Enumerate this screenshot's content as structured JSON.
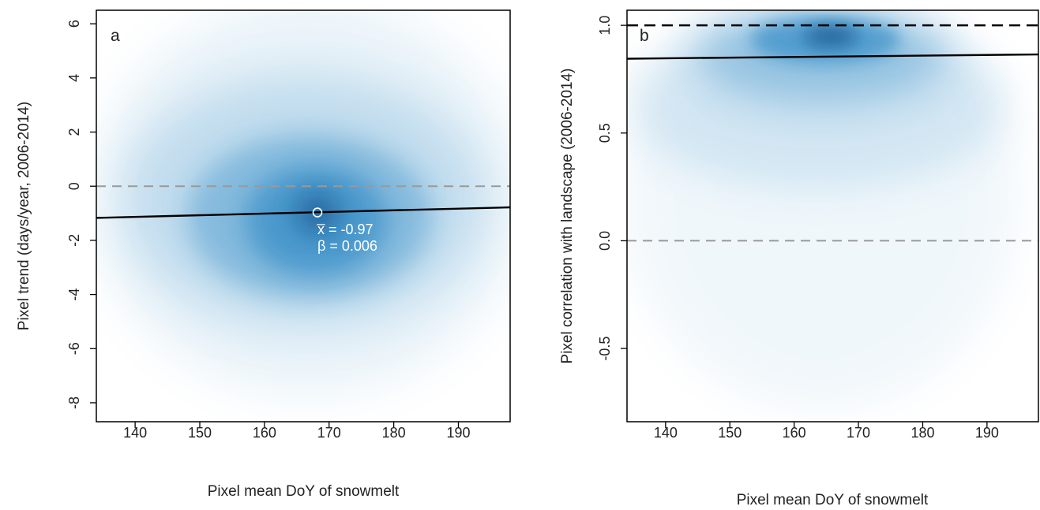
{
  "colors": {
    "density": "#1a7fc0",
    "density_core": "#0b4f8a",
    "trend_line": "#000000",
    "zero_line": "#999999",
    "annotation": "#ffffff"
  },
  "chart_data": [
    {
      "type": "scatter",
      "panel_label": "a",
      "xlabel": "Pixel mean DoY of snowmelt",
      "ylabel": "Pixel trend (days/year, 2006-2014)",
      "xlim": [
        134,
        198
      ],
      "ylim": [
        -8.7,
        6.5
      ],
      "x_ticks": [
        140,
        150,
        160,
        170,
        180,
        190
      ],
      "y_ticks": [
        -8,
        -6,
        -4,
        -2,
        0,
        2,
        4,
        6
      ],
      "density_peak": [
        168,
        -1.0
      ],
      "mean_point": [
        168.2,
        -0.97
      ],
      "reference_lines": [
        {
          "style": "dashed",
          "color": "#999999",
          "y": 0
        }
      ],
      "regression_line": {
        "x": [
          134,
          198
        ],
        "y": [
          -1.17,
          -0.78
        ]
      },
      "annotations": [
        "x̅ = -0.97",
        "β = 0.006"
      ],
      "grid": false,
      "legend": "none"
    },
    {
      "type": "scatter",
      "panel_label": "b",
      "xlabel": "Pixel mean DoY of snowmelt",
      "ylabel": "Pixel correlation with landscape (2006-2014)",
      "xlim": [
        134,
        198
      ],
      "ylim": [
        -0.84,
        1.07
      ],
      "x_ticks": [
        140,
        150,
        160,
        170,
        180,
        190
      ],
      "y_ticks": [
        -0.5,
        0.0,
        0.5,
        1.0
      ],
      "y_tick_labels": [
        "-0.5",
        "0.0",
        "0.5",
        "1.0"
      ],
      "density_peak": [
        167,
        0.95
      ],
      "reference_lines": [
        {
          "style": "dashed",
          "color": "#000000",
          "y": 1.0
        },
        {
          "style": "dashed",
          "color": "#999999",
          "y": 0.0
        }
      ],
      "regression_line": {
        "x": [
          134,
          198
        ],
        "y": [
          0.845,
          0.865
        ]
      },
      "grid": false,
      "legend": "none"
    }
  ]
}
